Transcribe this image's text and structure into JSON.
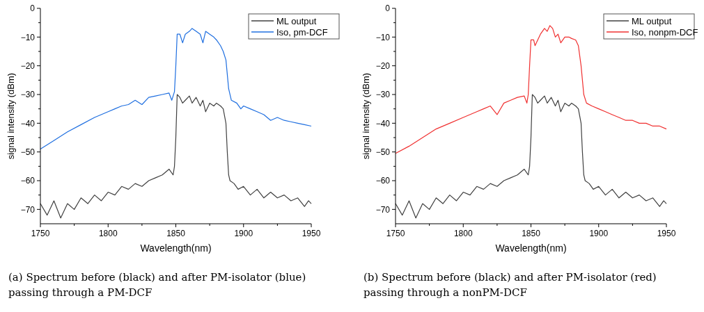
{
  "chart_data": [
    {
      "type": "line",
      "xlabel": "Wavelength(nm)",
      "ylabel": "signal intensity (dBm)",
      "xlim": [
        1750,
        1950
      ],
      "ylim": [
        -75,
        0
      ],
      "xticks": [
        1750,
        {
          "value": 1775,
          "label": null
        },
        1800,
        {
          "value": 1825,
          "label": null
        },
        1850,
        {
          "value": 1875,
          "label": null
        },
        1900,
        {
          "value": 1925,
          "label": null
        },
        1950
      ],
      "yticks": [
        0,
        {
          "value": -5,
          "label": null
        },
        -10,
        {
          "value": -15,
          "label": null
        },
        -20,
        {
          "value": -25,
          "label": null
        },
        -30,
        {
          "value": -35,
          "label": null
        },
        -40,
        {
          "value": -45,
          "label": null
        },
        -50,
        {
          "value": -55,
          "label": null
        },
        -60,
        {
          "value": -65,
          "label": null
        },
        -70
      ],
      "legend": "top right",
      "grid": false,
      "annotations": [
        "(a) Spectrum before (black) and after PM-isolator (blue) passing through a PM-DCF"
      ],
      "series": [
        {
          "name": "ML output",
          "color": "#404040",
          "x": [
            1750,
            1755,
            1760,
            1765,
            1770,
            1775,
            1780,
            1785,
            1790,
            1795,
            1800,
            1805,
            1810,
            1815,
            1820,
            1825,
            1830,
            1835,
            1840,
            1845,
            1848,
            1849,
            1850,
            1851,
            1853,
            1855,
            1857,
            1860,
            1862,
            1865,
            1868,
            1870,
            1872,
            1875,
            1878,
            1880,
            1883,
            1885,
            1887,
            1888,
            1889,
            1890,
            1893,
            1896,
            1900,
            1905,
            1910,
            1915,
            1920,
            1925,
            1930,
            1935,
            1940,
            1945,
            1948,
            1950
          ],
          "values": [
            -68,
            -72,
            -67,
            -73,
            -68,
            -70,
            -66,
            -68,
            -65,
            -67,
            -64,
            -65,
            -62,
            -63,
            -61,
            -62,
            -60,
            -59,
            -58,
            -56,
            -58,
            -55,
            -45,
            -30,
            -31,
            -33,
            -32,
            -30.5,
            -33,
            -31,
            -34,
            -32,
            -36,
            -33,
            -34,
            -33,
            -34,
            -35,
            -40,
            -50,
            -58,
            -60,
            -61,
            -63,
            -62,
            -65,
            -63,
            -66,
            -64,
            -66,
            -65,
            -67,
            -66,
            -69,
            -67,
            -68
          ]
        },
        {
          "name": "Iso, pm-DCF",
          "color": "#1f6fe0",
          "x": [
            1750,
            1760,
            1770,
            1780,
            1790,
            1800,
            1805,
            1810,
            1815,
            1820,
            1825,
            1830,
            1835,
            1840,
            1845,
            1847,
            1849,
            1850,
            1851,
            1853,
            1855,
            1857,
            1860,
            1862,
            1865,
            1868,
            1870,
            1872,
            1875,
            1878,
            1880,
            1883,
            1885,
            1887,
            1889,
            1891,
            1895,
            1898,
            1900,
            1905,
            1910,
            1915,
            1920,
            1925,
            1930,
            1935,
            1940,
            1945,
            1950
          ],
          "values": [
            -49,
            -46,
            -43,
            -40.5,
            -38,
            -36,
            -35,
            -34,
            -33.5,
            -32,
            -33.5,
            -31,
            -30.5,
            -30,
            -29.5,
            -32,
            -29,
            -20,
            -9,
            -9,
            -12,
            -9,
            -8,
            -7,
            -8,
            -9,
            -12,
            -8,
            -9,
            -10,
            -11,
            -13,
            -15,
            -18,
            -28,
            -32,
            -33,
            -35,
            -34,
            -35,
            -36,
            -37,
            -39,
            -38,
            -39,
            -39.5,
            -40,
            -40.5,
            -41
          ]
        }
      ]
    },
    {
      "type": "line",
      "xlabel": "Wavelength(nm)",
      "ylabel": "signal intensity (dBm)",
      "xlim": [
        1750,
        1950
      ],
      "ylim": [
        -75,
        0
      ],
      "xticks": [
        1750,
        {
          "value": 1775,
          "label": null
        },
        1800,
        {
          "value": 1825,
          "label": null
        },
        1850,
        {
          "value": 1875,
          "label": null
        },
        1900,
        {
          "value": 1925,
          "label": null
        },
        1950
      ],
      "yticks": [
        0,
        {
          "value": -5,
          "label": null
        },
        -10,
        {
          "value": -15,
          "label": null
        },
        -20,
        {
          "value": -25,
          "label": null
        },
        -30,
        {
          "value": -35,
          "label": null
        },
        -40,
        {
          "value": -45,
          "label": null
        },
        -50,
        {
          "value": -55,
          "label": null
        },
        -60,
        {
          "value": -65,
          "label": null
        },
        -70
      ],
      "legend": "top right",
      "grid": false,
      "annotations": [
        "(b) Spectrum before (black) and after PM-isolator (red) passing through a nonPM-DCF"
      ],
      "series": [
        {
          "name": "ML output",
          "color": "#404040",
          "x": [
            1750,
            1755,
            1760,
            1765,
            1770,
            1775,
            1780,
            1785,
            1790,
            1795,
            1800,
            1805,
            1810,
            1815,
            1820,
            1825,
            1830,
            1835,
            1840,
            1845,
            1848,
            1849,
            1850,
            1851,
            1853,
            1855,
            1857,
            1860,
            1862,
            1865,
            1868,
            1870,
            1872,
            1875,
            1878,
            1880,
            1883,
            1885,
            1887,
            1888,
            1889,
            1890,
            1893,
            1896,
            1900,
            1905,
            1910,
            1915,
            1920,
            1925,
            1930,
            1935,
            1940,
            1945,
            1948,
            1950
          ],
          "values": [
            -68,
            -72,
            -67,
            -73,
            -68,
            -70,
            -66,
            -68,
            -65,
            -67,
            -64,
            -65,
            -62,
            -63,
            -61,
            -62,
            -60,
            -59,
            -58,
            -56,
            -58,
            -55,
            -45,
            -30,
            -31,
            -33,
            -32,
            -30.5,
            -33,
            -31,
            -34,
            -32,
            -36,
            -33,
            -34,
            -33,
            -34,
            -35,
            -40,
            -50,
            -58,
            -60,
            -61,
            -63,
            -62,
            -65,
            -63,
            -66,
            -64,
            -66,
            -65,
            -67,
            -66,
            -69,
            -67,
            -68
          ]
        },
        {
          "name": "Iso, nonpm-DCF",
          "color": "#f03030",
          "x": [
            1750,
            1760,
            1770,
            1780,
            1790,
            1800,
            1810,
            1815,
            1820,
            1825,
            1830,
            1835,
            1840,
            1845,
            1847,
            1848,
            1849,
            1850,
            1852,
            1853,
            1855,
            1857,
            1860,
            1862,
            1864,
            1866,
            1868,
            1870,
            1872,
            1875,
            1878,
            1880,
            1883,
            1885,
            1887,
            1889,
            1891,
            1895,
            1900,
            1905,
            1910,
            1915,
            1920,
            1925,
            1930,
            1935,
            1940,
            1945,
            1950
          ],
          "values": [
            -50.5,
            -48,
            -45,
            -42,
            -40,
            -38,
            -36,
            -35,
            -34,
            -37,
            -33,
            -32,
            -31,
            -30.5,
            -33,
            -30,
            -20,
            -11,
            -11,
            -13,
            -11,
            -9,
            -7,
            -8,
            -6,
            -7,
            -10,
            -9,
            -12,
            -10,
            -10,
            -10.5,
            -11,
            -13,
            -20,
            -30,
            -33,
            -34,
            -35,
            -36,
            -37,
            -38,
            -39,
            -39,
            -40,
            -40,
            -41,
            -41,
            -42
          ]
        }
      ]
    }
  ]
}
